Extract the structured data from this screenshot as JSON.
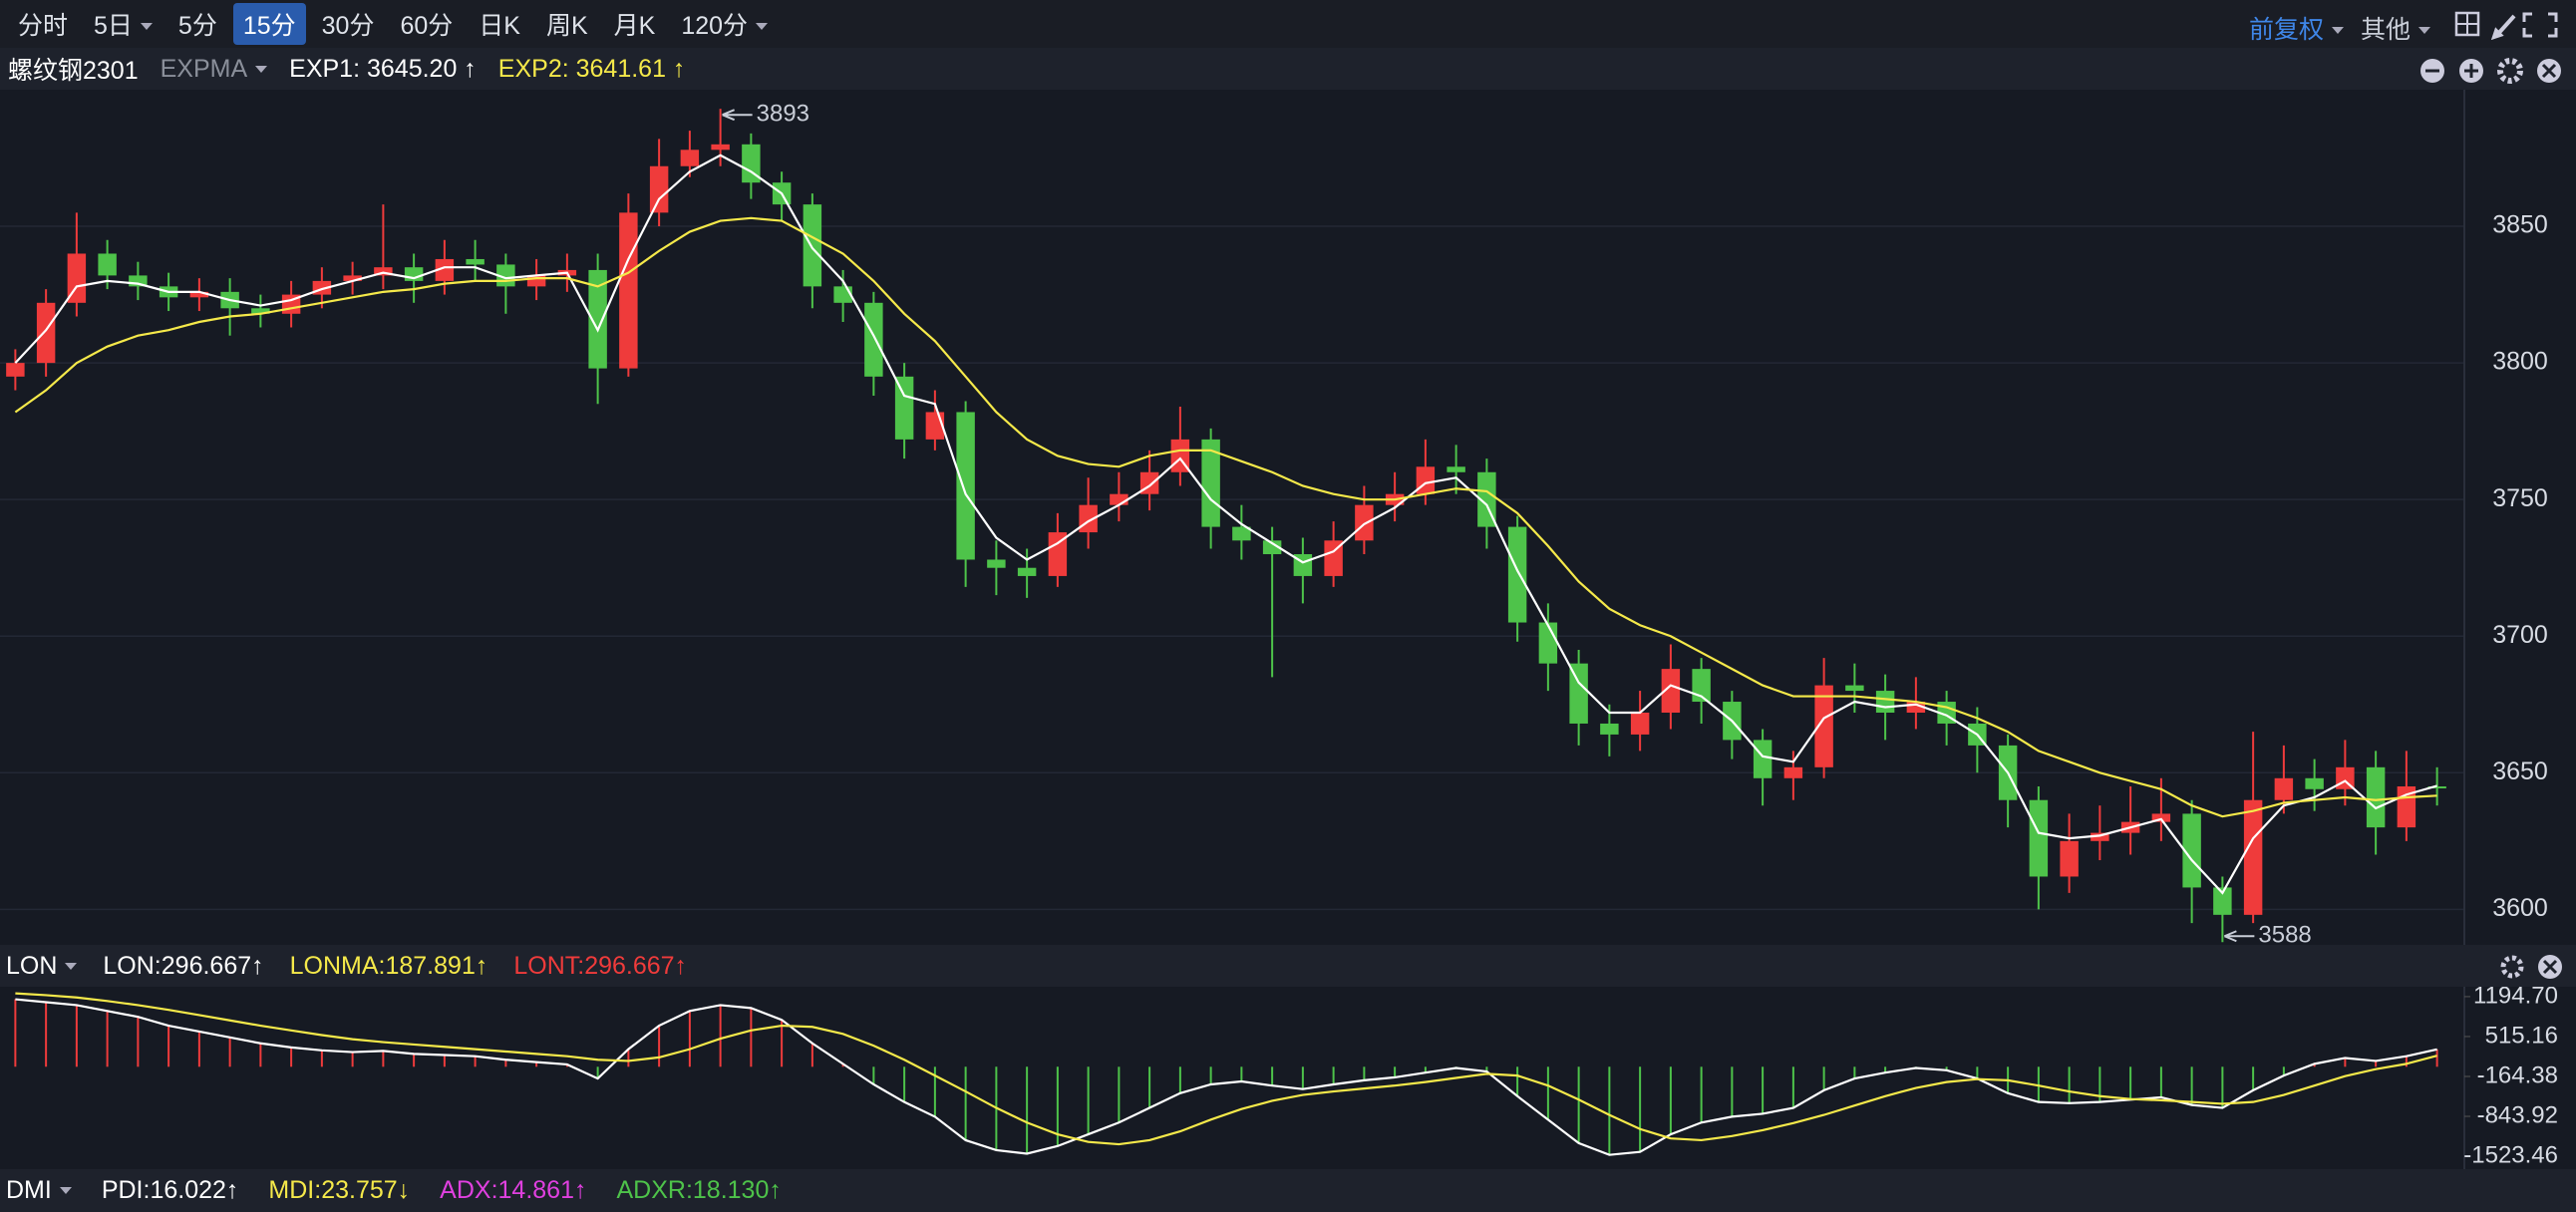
{
  "toolbar": {
    "periods": [
      {
        "label": "分时"
      },
      {
        "label": "5日",
        "dropdown": true
      },
      {
        "label": "5分"
      },
      {
        "label": "15分",
        "active": true
      },
      {
        "label": "30分"
      },
      {
        "label": "60分"
      },
      {
        "label": "日K"
      },
      {
        "label": "周K"
      },
      {
        "label": "月K"
      },
      {
        "label": "120分",
        "dropdown": true
      }
    ],
    "adjust": "前复权",
    "other": "其他"
  },
  "chart_data": [
    {
      "type": "candlestick",
      "title": "螺纹钢2301",
      "indicator": "EXPMA",
      "up_color": "#ef3b3b",
      "down_color": "#4ec34a",
      "open": [
        3795,
        3800,
        3822,
        3840,
        3832,
        3828,
        3824,
        3826,
        3820,
        3818,
        3825,
        3830,
        3832,
        3835,
        3830,
        3838,
        3836,
        3828,
        3832,
        3834,
        3798,
        3855,
        3872,
        3878,
        3880,
        3866,
        3858,
        3828,
        3822,
        3795,
        3772,
        3782,
        3728,
        3725,
        3722,
        3738,
        3748,
        3752,
        3760,
        3772,
        3740,
        3735,
        3730,
        3722,
        3735,
        3748,
        3752,
        3762,
        3760,
        3740,
        3705,
        3690,
        3668,
        3664,
        3672,
        3688,
        3676,
        3662,
        3648,
        3652,
        3682,
        3680,
        3672,
        3676,
        3668,
        3660,
        3640,
        3612,
        3625,
        3628,
        3632,
        3635,
        3608,
        3598,
        3640,
        3648,
        3644,
        3652,
        3630,
        3645
      ],
      "high": [
        3805,
        3827,
        3855,
        3845,
        3837,
        3833,
        3831,
        3831,
        3825,
        3830,
        3835,
        3837,
        3858,
        3840,
        3845,
        3845,
        3840,
        3838,
        3840,
        3840,
        3862,
        3882,
        3885,
        3893,
        3884,
        3870,
        3862,
        3834,
        3826,
        3800,
        3790,
        3786,
        3735,
        3732,
        3745,
        3758,
        3760,
        3768,
        3784,
        3776,
        3748,
        3740,
        3736,
        3742,
        3755,
        3760,
        3772,
        3770,
        3765,
        3744,
        3712,
        3695,
        3675,
        3680,
        3697,
        3692,
        3680,
        3666,
        3658,
        3692,
        3690,
        3686,
        3685,
        3680,
        3674,
        3664,
        3645,
        3635,
        3638,
        3645,
        3648,
        3640,
        3612,
        3665,
        3660,
        3655,
        3662,
        3658,
        3658,
        3652
      ],
      "low": [
        3790,
        3795,
        3817,
        3827,
        3823,
        3819,
        3819,
        3810,
        3813,
        3813,
        3820,
        3825,
        3827,
        3822,
        3825,
        3830,
        3818,
        3823,
        3826,
        3785,
        3795,
        3850,
        3868,
        3872,
        3860,
        3852,
        3820,
        3815,
        3788,
        3765,
        3768,
        3718,
        3715,
        3714,
        3718,
        3732,
        3742,
        3746,
        3755,
        3732,
        3728,
        3685,
        3712,
        3718,
        3730,
        3742,
        3748,
        3752,
        3732,
        3698,
        3680,
        3660,
        3656,
        3658,
        3666,
        3668,
        3655,
        3638,
        3640,
        3648,
        3672,
        3662,
        3666,
        3660,
        3650,
        3630,
        3600,
        3606,
        3618,
        3620,
        3625,
        3595,
        3588,
        3595,
        3635,
        3636,
        3638,
        3620,
        3625,
        3638
      ],
      "close": [
        3800,
        3822,
        3840,
        3832,
        3828,
        3824,
        3826,
        3820,
        3818,
        3825,
        3830,
        3832,
        3835,
        3830,
        3838,
        3836,
        3828,
        3832,
        3834,
        3798,
        3855,
        3872,
        3878,
        3880,
        3866,
        3858,
        3828,
        3822,
        3795,
        3772,
        3782,
        3728,
        3725,
        3722,
        3738,
        3748,
        3752,
        3760,
        3772,
        3740,
        3735,
        3730,
        3722,
        3735,
        3748,
        3752,
        3762,
        3760,
        3740,
        3705,
        3690,
        3668,
        3664,
        3672,
        3688,
        3676,
        3662,
        3648,
        3652,
        3682,
        3680,
        3672,
        3676,
        3668,
        3660,
        3640,
        3612,
        3625,
        3628,
        3632,
        3635,
        3608,
        3598,
        3640,
        3648,
        3644,
        3652,
        3630,
        3645,
        3645
      ],
      "series": [
        {
          "name": "EXP1: 3645.20 ↑",
          "color": "#ffffff",
          "values": [
            3800,
            3812,
            3828,
            3830,
            3829,
            3826,
            3826,
            3823,
            3821,
            3823,
            3827,
            3830,
            3833,
            3831,
            3835,
            3835,
            3831,
            3832,
            3833,
            3812,
            3838,
            3860,
            3870,
            3876,
            3870,
            3862,
            3842,
            3830,
            3810,
            3788,
            3785,
            3752,
            3736,
            3728,
            3734,
            3742,
            3748,
            3755,
            3765,
            3750,
            3741,
            3734,
            3727,
            3731,
            3741,
            3747,
            3756,
            3758,
            3748,
            3724,
            3704,
            3683,
            3672,
            3672,
            3682,
            3678,
            3669,
            3656,
            3654,
            3670,
            3676,
            3674,
            3675,
            3671,
            3664,
            3650,
            3628,
            3626,
            3627,
            3630,
            3633,
            3618,
            3606,
            3626,
            3638,
            3641,
            3647,
            3637,
            3642,
            3645.2
          ]
        },
        {
          "name": "EXP2: 3641.61 ↑",
          "color": "#f5e94a",
          "values": [
            3782,
            3790,
            3800,
            3806,
            3810,
            3812,
            3815,
            3817,
            3818,
            3820,
            3822,
            3824,
            3826,
            3827,
            3829,
            3830,
            3830,
            3831,
            3831,
            3828,
            3833,
            3841,
            3848,
            3852,
            3853,
            3852,
            3846,
            3840,
            3830,
            3818,
            3808,
            3795,
            3782,
            3772,
            3766,
            3763,
            3762,
            3766,
            3768,
            3768,
            3764,
            3760,
            3755,
            3752,
            3750,
            3750,
            3752,
            3754,
            3753,
            3745,
            3733,
            3720,
            3710,
            3704,
            3700,
            3694,
            3688,
            3682,
            3678,
            3678,
            3678,
            3677,
            3676,
            3674,
            3670,
            3665,
            3658,
            3654,
            3650,
            3647,
            3644,
            3638,
            3634,
            3636,
            3639,
            3640,
            3641,
            3640,
            3641,
            3641.61
          ]
        }
      ],
      "annotations": [
        3893,
        3588
      ],
      "ylim": [
        3587,
        3900
      ],
      "yticks": [
        3600,
        3650,
        3700,
        3750,
        3800,
        3850
      ],
      "grid": true
    },
    {
      "type": "combo",
      "title": "LON",
      "up_color": "#ef3b3b",
      "down_color": "#4ec34a",
      "series": [
        {
          "name": "LON:296.667↑",
          "color": "#ffffff",
          "bars": true,
          "values": [
            1150,
            1100,
            1050,
            950,
            850,
            700,
            600,
            500,
            400,
            330,
            280,
            250,
            270,
            220,
            200,
            180,
            120,
            80,
            40,
            -200,
            300,
            700,
            950,
            1050,
            1000,
            800,
            400,
            50,
            -300,
            -600,
            -850,
            -1250,
            -1420,
            -1480,
            -1350,
            -1150,
            -950,
            -700,
            -450,
            -300,
            -250,
            -320,
            -380,
            -300,
            -230,
            -180,
            -100,
            -20,
            -80,
            -500,
            -900,
            -1300,
            -1500,
            -1450,
            -1150,
            -950,
            -850,
            -800,
            -700,
            -400,
            -200,
            -100,
            -20,
            -60,
            -200,
            -450,
            -600,
            -620,
            -600,
            -560,
            -520,
            -650,
            -700,
            -400,
            -150,
            50,
            150,
            100,
            180,
            296.667
          ]
        },
        {
          "name": "LONMA:187.891↑",
          "color": "#f5e94a",
          "values": [
            1250,
            1220,
            1180,
            1120,
            1050,
            970,
            880,
            790,
            700,
            620,
            540,
            470,
            420,
            380,
            340,
            300,
            260,
            220,
            180,
            120,
            100,
            160,
            300,
            480,
            620,
            700,
            680,
            560,
            360,
            120,
            -150,
            -420,
            -700,
            -950,
            -1150,
            -1280,
            -1320,
            -1250,
            -1100,
            -900,
            -720,
            -580,
            -480,
            -420,
            -370,
            -320,
            -260,
            -190,
            -120,
            -150,
            -320,
            -560,
            -820,
            -1060,
            -1220,
            -1250,
            -1180,
            -1080,
            -960,
            -820,
            -660,
            -500,
            -360,
            -260,
            -210,
            -230,
            -320,
            -420,
            -500,
            -550,
            -570,
            -600,
            -630,
            -600,
            -480,
            -320,
            -160,
            -40,
            50,
            187.891
          ]
        }
      ],
      "lont": {
        "name": "LONT:296.667↑",
        "color": "#ef3b3b"
      },
      "ylim": [
        -1743,
        1363
      ],
      "yticks": [
        {
          "value": 1194.7,
          "label": "1194.70"
        },
        515.16,
        -164.38,
        -843.92,
        -1523.46
      ]
    }
  ],
  "dmi": {
    "title": "DMI",
    "items": [
      {
        "text": "PDI:16.022↑",
        "color": "#ffffff"
      },
      {
        "text": "MDI:23.757↓",
        "color": "#f5e94a"
      },
      {
        "text": "ADX:14.861↑",
        "color": "#e040e0"
      },
      {
        "text": "ADXR:18.130↑",
        "color": "#4ec34a"
      }
    ]
  }
}
